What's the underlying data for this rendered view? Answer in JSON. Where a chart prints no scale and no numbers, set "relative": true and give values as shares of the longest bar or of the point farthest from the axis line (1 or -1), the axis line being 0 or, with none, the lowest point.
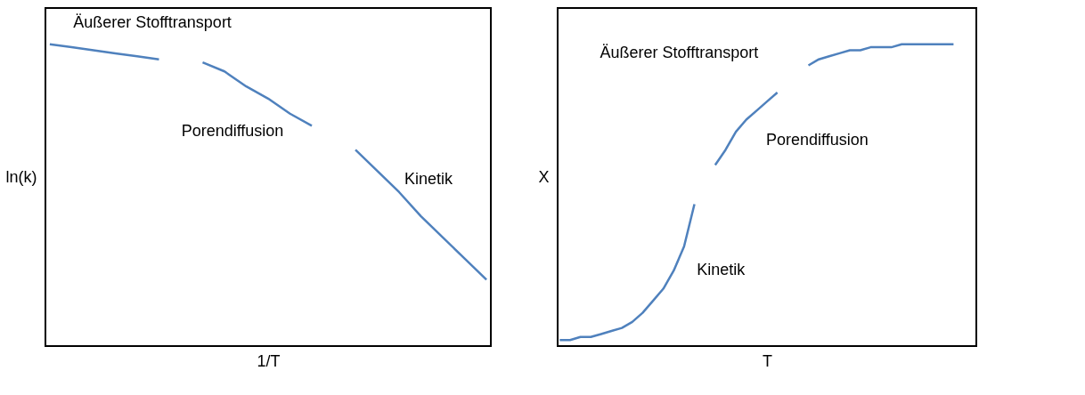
{
  "chart_data": [
    {
      "type": "line",
      "relative": true,
      "xlabel": "1/T",
      "ylabel": "ln(k)",
      "categories": [
        null,
        null,
        null,
        null,
        null,
        null,
        null,
        null,
        null,
        null,
        null,
        null,
        null,
        null,
        null,
        null,
        null,
        null,
        null,
        null,
        null
      ],
      "series": [
        {
          "color": "#4f81bd",
          "values": [
            1.0,
            0.99,
            0.98,
            0.97,
            0.96,
            0.95,
            null,
            null,
            null,
            null,
            null,
            null,
            null,
            null,
            null,
            null,
            null,
            null,
            null,
            null,
            null
          ]
        },
        {
          "color": "#4f81bd",
          "values": [
            null,
            null,
            null,
            null,
            null,
            null,
            null,
            0.94,
            0.91,
            0.86,
            0.82,
            0.77,
            0.73,
            null,
            null,
            null,
            null,
            null,
            null,
            null,
            null
          ]
        },
        {
          "color": "#4f81bd",
          "values": [
            null,
            null,
            null,
            null,
            null,
            null,
            null,
            null,
            null,
            null,
            null,
            null,
            null,
            null,
            0.65,
            0.58,
            0.51,
            0.43,
            0.36,
            0.29,
            0.22
          ]
        }
      ],
      "annotations": [
        "Äußerer Stofftransport",
        "Porendiffusion",
        "Kinetik"
      ]
    },
    {
      "type": "line",
      "relative": true,
      "xlabel": "T",
      "ylabel": "X",
      "categories": [
        null,
        null,
        null,
        null,
        null,
        null,
        null,
        null,
        null,
        null,
        null,
        null,
        null,
        null,
        null,
        null,
        null,
        null,
        null,
        null,
        null,
        null,
        null,
        null,
        null,
        null,
        null,
        null,
        null,
        null,
        null,
        null,
        null,
        null,
        null,
        null,
        null,
        null,
        null,
        null,
        null
      ],
      "series": [
        {
          "color": "#4f81bd",
          "values": [
            0.02,
            0.02,
            0.03,
            0.03,
            0.04,
            0.05,
            0.06,
            0.08,
            0.11,
            0.15,
            0.19,
            0.25,
            0.33,
            0.47,
            null,
            null,
            null,
            null,
            null,
            null,
            null,
            null,
            null,
            null,
            null,
            null,
            null,
            null,
            null,
            null,
            null,
            null,
            null,
            null,
            null,
            null,
            null,
            null,
            null,
            null,
            null
          ]
        },
        {
          "color": "#4f81bd",
          "values": [
            null,
            null,
            null,
            null,
            null,
            null,
            null,
            null,
            null,
            null,
            null,
            null,
            null,
            null,
            null,
            0.6,
            0.65,
            0.71,
            0.75,
            0.78,
            0.81,
            0.84,
            null,
            null,
            null,
            null,
            null,
            null,
            null,
            null,
            null,
            null,
            null,
            null,
            null,
            null,
            null,
            null,
            null,
            null,
            null
          ]
        },
        {
          "color": "#4f81bd",
          "values": [
            null,
            null,
            null,
            null,
            null,
            null,
            null,
            null,
            null,
            null,
            null,
            null,
            null,
            null,
            null,
            null,
            null,
            null,
            null,
            null,
            null,
            null,
            null,
            null,
            0.93,
            0.95,
            0.96,
            0.97,
            0.98,
            0.98,
            0.99,
            0.99,
            0.99,
            1.0,
            1.0,
            1.0,
            1.0,
            1.0,
            1.0,
            null,
            null
          ]
        }
      ],
      "annotations": [
        "Äußerer Stofftransport",
        "Porendiffusion",
        "Kinetik"
      ]
    }
  ]
}
